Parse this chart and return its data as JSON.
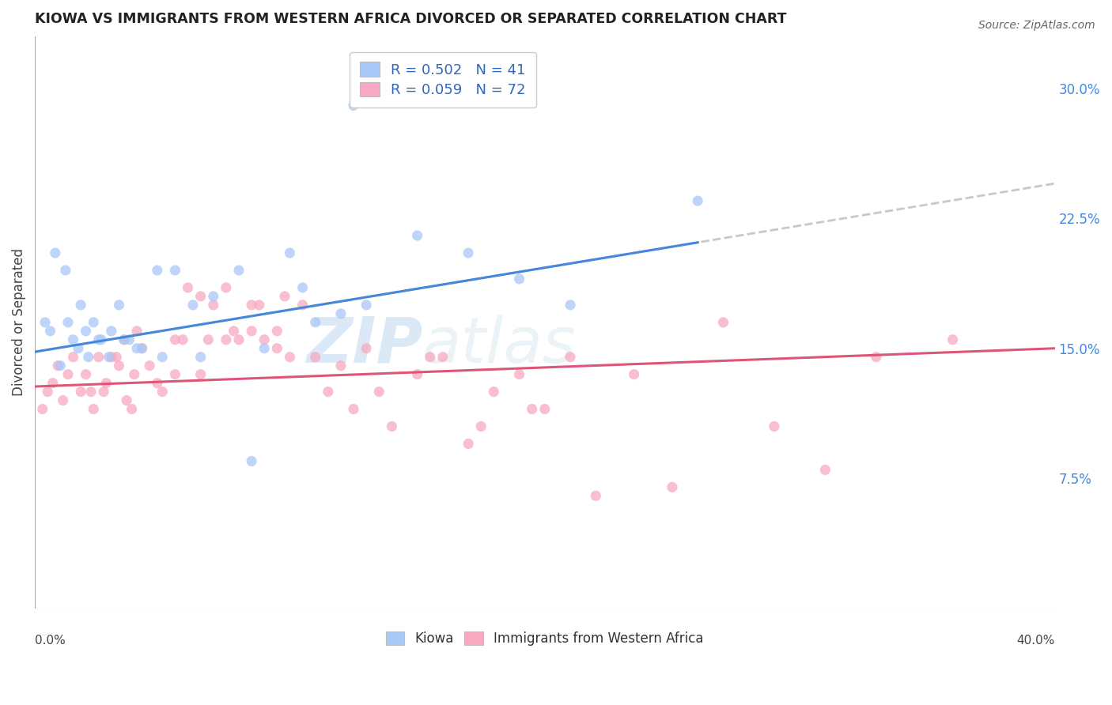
{
  "title": "KIOWA VS IMMIGRANTS FROM WESTERN AFRICA DIVORCED OR SEPARATED CORRELATION CHART",
  "source": "Source: ZipAtlas.com",
  "ylabel": "Divorced or Separated",
  "right_yticks": [
    "7.5%",
    "15.0%",
    "22.5%",
    "30.0%"
  ],
  "right_ytick_vals": [
    7.5,
    15.0,
    22.5,
    30.0
  ],
  "xmin": 0.0,
  "xmax": 40.0,
  "ymin": 0.0,
  "ymax": 33.0,
  "legend1_label": "R = 0.502   N = 41",
  "legend2_label": "R = 0.059   N = 72",
  "legend_bottom_label1": "Kiowa",
  "legend_bottom_label2": "Immigrants from Western Africa",
  "watermark_zip": "ZIP",
  "watermark_atlas": "atlas",
  "kiowa_color": "#a8c8f8",
  "western_africa_color": "#f8a8c0",
  "kiowa_line_color": "#4488dd",
  "western_africa_line_color": "#dd5577",
  "dashed_line_color": "#bbbbbb",
  "background_color": "#ffffff",
  "grid_color": "#dddddd",
  "kiowa_line_x0": 0.0,
  "kiowa_line_y0": 14.8,
  "kiowa_line_x1": 40.0,
  "kiowa_line_y1": 24.5,
  "kiowa_solid_end_x": 26.0,
  "western_line_x0": 0.0,
  "western_line_y0": 12.8,
  "western_line_x1": 40.0,
  "western_line_y1": 15.0,
  "kiowa_x": [
    12.5,
    0.8,
    1.2,
    1.5,
    1.8,
    2.0,
    2.3,
    2.6,
    3.0,
    3.3,
    3.7,
    4.2,
    4.8,
    5.5,
    6.2,
    7.0,
    8.0,
    9.0,
    10.0,
    11.0,
    13.0,
    15.0,
    17.0,
    19.0,
    21.0,
    26.0,
    0.4,
    0.6,
    1.0,
    1.3,
    1.7,
    2.1,
    2.5,
    2.9,
    3.5,
    4.0,
    5.0,
    6.5,
    8.5,
    10.5,
    12.0
  ],
  "kiowa_y": [
    29.0,
    20.5,
    19.5,
    15.5,
    17.5,
    16.0,
    16.5,
    15.5,
    16.0,
    17.5,
    15.5,
    15.0,
    19.5,
    19.5,
    17.5,
    18.0,
    19.5,
    15.0,
    20.5,
    16.5,
    17.5,
    21.5,
    20.5,
    19.0,
    17.5,
    23.5,
    16.5,
    16.0,
    14.0,
    16.5,
    15.0,
    14.5,
    15.5,
    14.5,
    15.5,
    15.0,
    14.5,
    14.5,
    8.5,
    18.5,
    17.0
  ],
  "western_x": [
    0.3,
    0.5,
    0.7,
    0.9,
    1.1,
    1.3,
    1.5,
    1.8,
    2.0,
    2.2,
    2.5,
    2.8,
    3.0,
    3.3,
    3.6,
    3.9,
    4.2,
    4.5,
    5.0,
    5.5,
    6.0,
    6.5,
    7.0,
    7.5,
    8.0,
    8.5,
    9.0,
    9.5,
    10.0,
    11.0,
    11.5,
    12.0,
    12.5,
    13.0,
    14.0,
    15.0,
    16.0,
    17.0,
    18.0,
    19.0,
    20.0,
    21.0,
    22.0,
    23.5,
    25.0,
    27.0,
    29.0,
    31.0,
    33.0,
    36.0,
    6.5,
    7.5,
    8.5,
    3.5,
    4.0,
    5.5,
    9.5,
    10.5,
    13.5,
    15.5,
    17.5,
    19.5,
    4.8,
    5.8,
    6.8,
    7.8,
    8.8,
    9.8,
    2.3,
    2.7,
    3.2,
    3.8
  ],
  "western_y": [
    11.5,
    12.5,
    13.0,
    14.0,
    12.0,
    13.5,
    14.5,
    12.5,
    13.5,
    12.5,
    14.5,
    13.0,
    14.5,
    14.0,
    12.0,
    13.5,
    15.0,
    14.0,
    12.5,
    13.5,
    18.5,
    18.0,
    17.5,
    18.5,
    15.5,
    16.0,
    15.5,
    15.0,
    14.5,
    14.5,
    12.5,
    14.0,
    11.5,
    15.0,
    10.5,
    13.5,
    14.5,
    9.5,
    12.5,
    13.5,
    11.5,
    14.5,
    6.5,
    13.5,
    7.0,
    16.5,
    10.5,
    8.0,
    14.5,
    15.5,
    13.5,
    15.5,
    17.5,
    15.5,
    16.0,
    15.5,
    16.0,
    17.5,
    12.5,
    14.5,
    10.5,
    11.5,
    13.0,
    15.5,
    15.5,
    16.0,
    17.5,
    18.0,
    11.5,
    12.5,
    14.5,
    11.5
  ]
}
